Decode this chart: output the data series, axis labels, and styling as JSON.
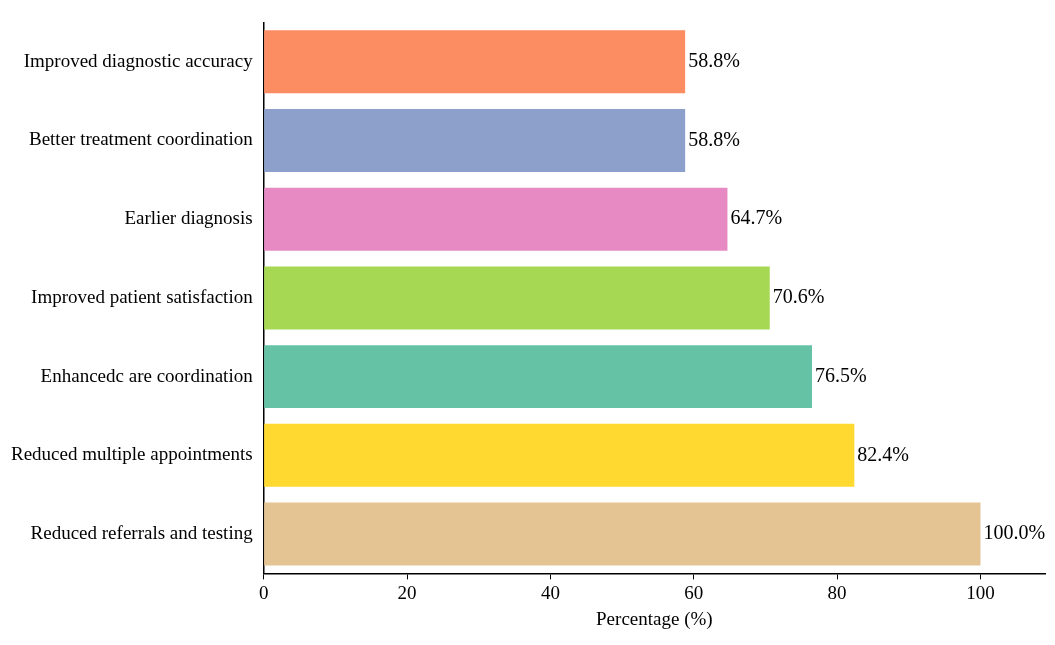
{
  "chart_data": {
    "type": "bar",
    "orientation": "horizontal",
    "xlabel": "Percentage (%)",
    "categories": [
      "Improved diagnostic accuracy",
      "Better treatment coordination",
      "Earlier diagnosis",
      "Improved patient satisfaction",
      "Enhancedc are coordination",
      "Reduced multiple appointments",
      "Reduced referrals and testing"
    ],
    "values": [
      58.8,
      58.8,
      64.7,
      70.6,
      76.5,
      82.4,
      100.0
    ],
    "colors": [
      "#fc8d62",
      "#8da0cb",
      "#e78ac3",
      "#a6d854",
      "#66c2a5",
      "#ffd92f",
      "#e5c494"
    ],
    "value_labels": [
      "58.8%",
      "58.8%",
      "64.7%",
      "70.6%",
      "76.5%",
      "82.4%",
      "100.0%"
    ],
    "xlim": [
      0,
      109
    ],
    "xticks": [
      0,
      20,
      40,
      60,
      80,
      100
    ],
    "grid": false,
    "legend": false
  }
}
